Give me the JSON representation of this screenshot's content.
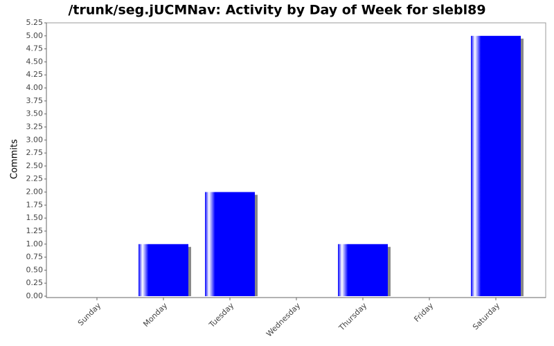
{
  "chart_data": {
    "type": "bar",
    "title": "/trunk/seg.jUCMNav: Activity by Day of Week for slebl89",
    "y_label": "Commits",
    "categories": [
      "Sunday",
      "Monday",
      "Tuesday",
      "Wednesday",
      "Thursday",
      "Friday",
      "Saturday"
    ],
    "values": [
      0,
      1,
      2,
      0,
      1,
      0,
      5
    ],
    "color": "#0000ff",
    "ylim": [
      0,
      5.25
    ],
    "yticks": [
      {
        "value": 0,
        "label": "0.00"
      },
      {
        "value": 0.25,
        "label": "0.25"
      },
      {
        "value": 0.5,
        "label": "0.50"
      },
      {
        "value": 0.75,
        "label": "0.75"
      },
      {
        "value": 1,
        "label": "1.00"
      },
      {
        "value": 1.25,
        "label": "1.25"
      },
      {
        "value": 1.5,
        "label": "1.50"
      },
      {
        "value": 1.75,
        "label": "1.75"
      },
      {
        "value": 2,
        "label": "2.00"
      },
      {
        "value": 2.25,
        "label": "2.25"
      },
      {
        "value": 2.5,
        "label": "2.50"
      },
      {
        "value": 2.75,
        "label": "2.75"
      },
      {
        "value": 3,
        "label": "3.00"
      },
      {
        "value": 3.25,
        "label": "3.25"
      },
      {
        "value": 3.5,
        "label": "3.50"
      },
      {
        "value": 3.75,
        "label": "3.75"
      },
      {
        "value": 4,
        "label": "4.00"
      },
      {
        "value": 4.25,
        "label": "4.25"
      },
      {
        "value": 4.5,
        "label": "4.50"
      },
      {
        "value": 4.75,
        "label": "4.75"
      },
      {
        "value": 5,
        "label": "5.00"
      },
      {
        "value": 5.25,
        "label": "5.25"
      }
    ],
    "grid": false
  }
}
